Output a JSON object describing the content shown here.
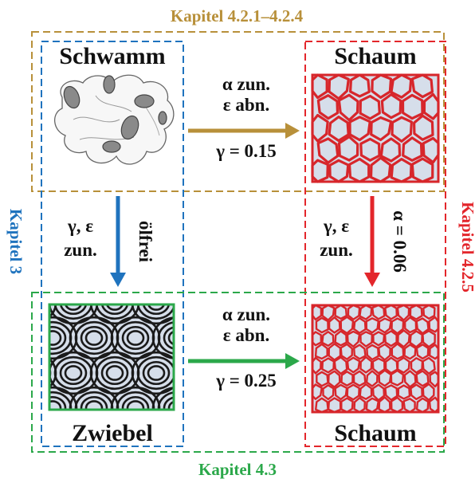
{
  "regions": {
    "top": {
      "label": "Kapitel 4.2.1–4.2.4",
      "color": "#B8903A"
    },
    "bottom": {
      "label": "Kapitel 4.3",
      "color": "#2BA84A"
    },
    "left": {
      "label": "Kapitel 3",
      "color": "#1F73BE"
    },
    "right": {
      "label": "Kapitel 4.2.5",
      "color": "#E3262B"
    }
  },
  "nodes": {
    "sponge": {
      "label": "Schwamm"
    },
    "foam_top": {
      "label": "Schaum"
    },
    "onion": {
      "label": "Zwiebel"
    },
    "foam_bottom": {
      "label": "Schaum"
    }
  },
  "arrows": {
    "top": {
      "line1": "α zun.",
      "line2": "ε abn.",
      "line3": "γ = 0.15",
      "color": "#B8903A"
    },
    "bottom": {
      "line1": "α zun.",
      "line2": "ε abn.",
      "line3": "γ = 0.25",
      "color": "#2BA84A"
    },
    "left": {
      "label_line1": "γ, ε",
      "label_line2": "zun.",
      "side_label": "ölfrei",
      "color": "#1F73BE"
    },
    "right": {
      "label_line1": "γ, ε",
      "label_line2": "zun.",
      "side_label": "α = 0.06",
      "color": "#E3262B"
    }
  },
  "colors": {
    "cell_fill": "#D6DEEA",
    "foam_edge": "#D7262B",
    "foam_dark": "#222222",
    "onion_frame": "#2BA84A"
  }
}
